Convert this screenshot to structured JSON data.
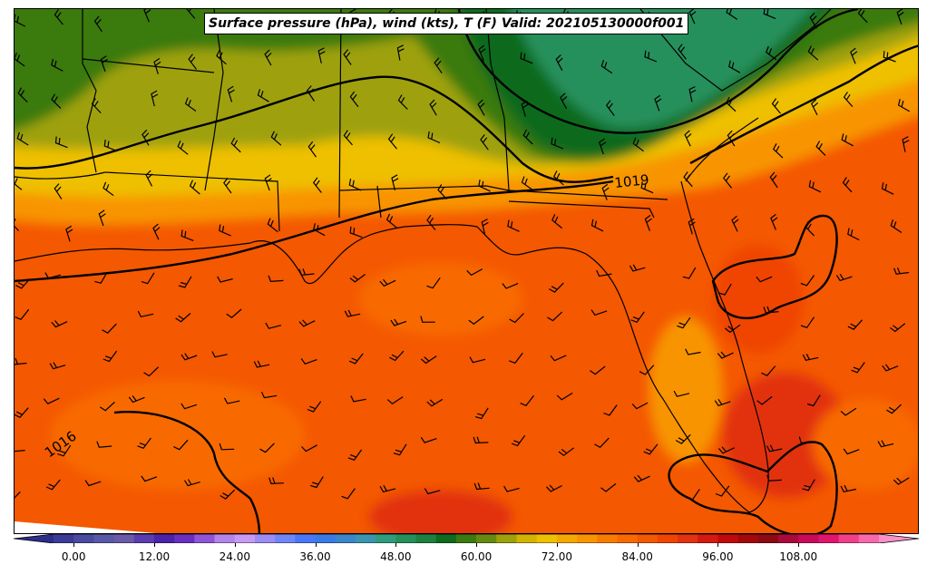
{
  "title": "Surface pressure (hPa), wind (kts), T (F) Valid: 202105130000f001",
  "isobar_labels": [
    "1019",
    "1016"
  ],
  "colorbar": {
    "tick_labels": [
      "0.00",
      "12.00",
      "24.00",
      "36.00",
      "48.00",
      "60.00",
      "72.00",
      "84.00",
      "96.00",
      "108.00"
    ],
    "min": -6,
    "max": 123,
    "step": 3,
    "colors": [
      "#2d2d8c",
      "#3b3b96",
      "#4a4aa0",
      "#5858a8",
      "#6a5aa8",
      "#5a3cae",
      "#4b22a8",
      "#6a2ec0",
      "#9154d6",
      "#b584ea",
      "#c89af3",
      "#9c8cf5",
      "#7086f8",
      "#4a76f8",
      "#3a7ae6",
      "#3a86c8",
      "#3a96b0",
      "#2e9c7e",
      "#25905c",
      "#1c8040",
      "#0e6a1c",
      "#3a7a10",
      "#668a10",
      "#9ea10c",
      "#d2b400",
      "#eec000",
      "#f5a800",
      "#f89400",
      "#f97c00",
      "#f86a00",
      "#f45800",
      "#ef4500",
      "#e23210",
      "#d41a10",
      "#c00a0a",
      "#a40808",
      "#8c0a14",
      "#a80a3c",
      "#c80a5a",
      "#e0166e",
      "#f0408a",
      "#f868ac",
      "#fc90c8"
    ]
  }
}
